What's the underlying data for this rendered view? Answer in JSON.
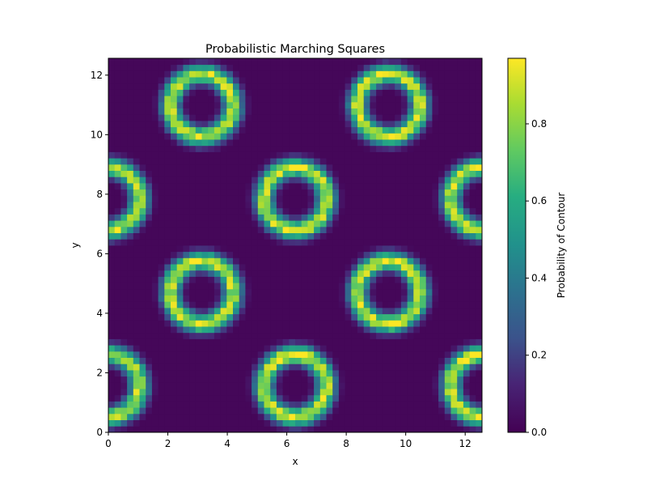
{
  "chart_data": {
    "type": "heatmap",
    "title": "Probabilistic Marching Squares",
    "xlabel": "x",
    "ylabel": "y",
    "xlim": [
      0,
      12.566
    ],
    "ylim": [
      0,
      12.566
    ],
    "grid_shape": [
      60,
      60
    ],
    "xticks": [
      "0",
      "2",
      "4",
      "6",
      "8",
      "10",
      "12"
    ],
    "yticks": [
      "0",
      "2",
      "4",
      "6",
      "8",
      "10",
      "12"
    ],
    "colormap": "viridis",
    "colorbar": {
      "label": "Probability of Contour",
      "range": [
        0,
        0.97
      ],
      "ticks": [
        "0.0",
        "0.2",
        "0.4",
        "0.6",
        "0.8"
      ]
    },
    "ring_centers": [
      [
        3.1416,
        10.9956
      ],
      [
        9.4248,
        10.9956
      ],
      [
        0,
        7.854
      ],
      [
        6.2832,
        7.854
      ],
      [
        12.566,
        7.854
      ],
      [
        3.1416,
        4.7124
      ],
      [
        9.4248,
        4.7124
      ],
      [
        0,
        1.5708
      ],
      [
        6.2832,
        1.5708
      ],
      [
        12.566,
        1.5708
      ]
    ],
    "ring_radius": 1.05,
    "peak_probability": 0.97,
    "background_probability": 0.02
  }
}
